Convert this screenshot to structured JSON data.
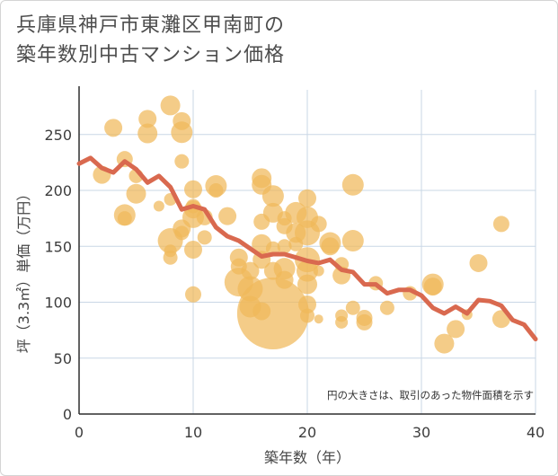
{
  "title_lines": [
    "兵庫県神戸市東灘区甲南町の",
    "築年数別中古マンション価格"
  ],
  "colors": {
    "bubble": "#f0b95a",
    "line": "#d9694f",
    "grid": "#c9d7e6",
    "axis": "#2f2f2f"
  },
  "chart_data": {
    "type": "scatter",
    "title": "兵庫県神戸市東灘区甲南町の築年数別中古マンション価格",
    "xlabel": "築年数（年）",
    "ylabel": "坪（3.3㎡）単価（万円）",
    "xlim": [
      0,
      40
    ],
    "ylim": [
      0,
      290
    ],
    "xticks": [
      0,
      10,
      20,
      30,
      40
    ],
    "yticks": [
      0,
      50,
      100,
      150,
      200,
      250
    ],
    "grid": true,
    "annotation": "円の大きさは、取引のあった物件面積を示す",
    "points": [
      [
        2,
        214,
        10
      ],
      [
        3,
        256,
        10
      ],
      [
        4,
        228,
        9
      ],
      [
        4,
        178,
        12
      ],
      [
        4,
        175,
        8
      ],
      [
        5,
        213,
        8
      ],
      [
        5,
        197,
        11
      ],
      [
        6,
        264,
        10
      ],
      [
        6,
        251,
        11
      ],
      [
        7,
        186,
        6
      ],
      [
        8,
        276,
        11
      ],
      [
        8,
        192,
        7
      ],
      [
        8,
        155,
        14
      ],
      [
        8,
        140,
        8
      ],
      [
        8,
        146,
        7
      ],
      [
        9,
        262,
        10
      ],
      [
        9,
        252,
        12
      ],
      [
        9,
        226,
        8
      ],
      [
        9,
        162,
        8
      ],
      [
        9,
        166,
        10
      ],
      [
        10,
        201,
        10
      ],
      [
        10,
        186,
        8
      ],
      [
        10,
        183,
        10
      ],
      [
        10,
        176,
        12
      ],
      [
        10,
        147,
        10
      ],
      [
        10,
        107,
        9
      ],
      [
        11,
        176,
        9
      ],
      [
        11,
        158,
        8
      ],
      [
        12,
        204,
        12
      ],
      [
        12,
        200,
        8
      ],
      [
        13,
        177,
        10
      ],
      [
        14,
        140,
        10
      ],
      [
        14,
        132,
        9
      ],
      [
        14,
        118,
        16
      ],
      [
        15,
        128,
        10
      ],
      [
        15,
        112,
        14
      ],
      [
        15,
        96,
        12
      ],
      [
        16,
        211,
        11
      ],
      [
        16,
        205,
        11
      ],
      [
        16,
        172,
        9
      ],
      [
        16,
        152,
        11
      ],
      [
        16,
        138,
        10
      ],
      [
        16,
        92,
        10
      ],
      [
        17,
        195,
        12
      ],
      [
        17,
        180,
        11
      ],
      [
        17,
        148,
        8
      ],
      [
        17,
        128,
        10
      ],
      [
        17,
        90,
        40
      ],
      [
        18,
        175,
        8
      ],
      [
        18,
        168,
        9
      ],
      [
        18,
        150,
        8
      ],
      [
        18,
        130,
        12
      ],
      [
        18,
        120,
        10
      ],
      [
        19,
        180,
        12
      ],
      [
        19,
        162,
        11
      ],
      [
        19,
        152,
        8
      ],
      [
        20,
        193,
        10
      ],
      [
        20,
        176,
        12
      ],
      [
        20,
        162,
        14
      ],
      [
        20,
        138,
        14
      ],
      [
        20,
        128,
        12
      ],
      [
        20,
        116,
        11
      ],
      [
        20,
        98,
        10
      ],
      [
        20,
        88,
        8
      ],
      [
        21,
        128,
        6
      ],
      [
        21,
        85,
        5
      ],
      [
        21,
        170,
        9
      ],
      [
        22,
        153,
        12
      ],
      [
        22,
        150,
        10
      ],
      [
        23,
        134,
        8
      ],
      [
        23,
        124,
        10
      ],
      [
        23,
        88,
        7
      ],
      [
        23,
        82,
        7
      ],
      [
        24,
        205,
        12
      ],
      [
        24,
        155,
        12
      ],
      [
        24,
        95,
        8
      ],
      [
        25,
        86,
        9
      ],
      [
        25,
        82,
        9
      ],
      [
        26,
        117,
        8
      ],
      [
        27,
        95,
        8
      ],
      [
        29,
        108,
        8
      ],
      [
        31,
        116,
        12
      ],
      [
        31,
        114,
        10
      ],
      [
        32,
        63,
        11
      ],
      [
        33,
        76,
        10
      ],
      [
        34,
        89,
        6
      ],
      [
        35,
        135,
        10
      ],
      [
        37,
        170,
        9
      ],
      [
        37,
        85,
        10
      ]
    ],
    "series": [
      {
        "x": [
          0,
          1,
          2,
          3,
          4,
          5,
          6,
          7,
          8,
          9,
          10,
          11,
          12,
          13,
          14,
          15,
          16,
          17,
          18,
          19,
          20,
          21,
          22,
          23,
          24,
          25,
          26,
          27,
          28,
          29,
          30,
          31,
          32,
          33,
          34,
          35,
          36,
          37,
          38,
          39,
          40
        ],
        "y": [
          224,
          229,
          220,
          216,
          226,
          219,
          207,
          213,
          203,
          183,
          186,
          183,
          167,
          159,
          155,
          148,
          141,
          143,
          143,
          140,
          137,
          135,
          138,
          129,
          127,
          116,
          116,
          108,
          111,
          111,
          106,
          95,
          90,
          96,
          90,
          102,
          101,
          97,
          84,
          80,
          67
        ]
      }
    ]
  }
}
